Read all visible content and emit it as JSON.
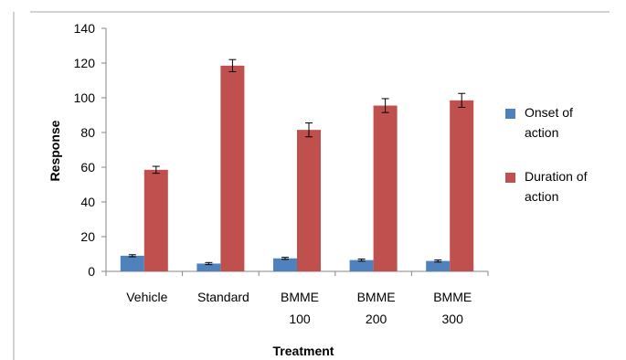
{
  "chart_data": {
    "type": "bar",
    "title": "",
    "xlabel": "Treatment",
    "ylabel": "Response",
    "ylim": [
      0,
      140
    ],
    "yticks": [
      0,
      20,
      40,
      60,
      80,
      100,
      120,
      140
    ],
    "grid": false,
    "legend_position": "right",
    "categories": [
      [
        "Vehicle"
      ],
      [
        "Standard"
      ],
      [
        "BMME",
        "100"
      ],
      [
        "BMME",
        "200"
      ],
      [
        "BMME",
        "300"
      ]
    ],
    "series": [
      {
        "name": [
          "Onset of",
          "action"
        ],
        "color": "#4F81BD",
        "values": [
          9,
          4.5,
          7.5,
          6.5,
          6
        ],
        "errors": [
          0.6,
          0.6,
          0.6,
          0.6,
          0.6
        ]
      },
      {
        "name": [
          "Duration of",
          "action"
        ],
        "color": "#C0504D",
        "values": [
          58.5,
          118.5,
          81.5,
          95.5,
          98.5
        ],
        "errors": [
          2,
          3.5,
          4,
          4,
          4
        ]
      }
    ]
  }
}
